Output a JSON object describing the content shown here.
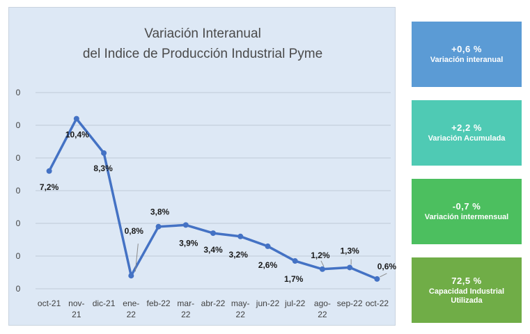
{
  "chart_data": {
    "type": "line",
    "title_lines": [
      "Variación Interanual",
      "del Indice de Producción Industrial Pyme"
    ],
    "categories": [
      [
        "oct-21"
      ],
      [
        "nov-",
        "21"
      ],
      [
        "dic-21"
      ],
      [
        "ene-",
        "22"
      ],
      [
        "feb-22"
      ],
      [
        "mar-",
        "22"
      ],
      [
        "abr-22"
      ],
      [
        "may-",
        "22"
      ],
      [
        "jun-22"
      ],
      [
        "jul-22"
      ],
      [
        "ago-",
        "22"
      ],
      [
        "sep-22"
      ],
      [
        "oct-22"
      ]
    ],
    "series": [
      {
        "name": "Variación Interanual",
        "color": "#4472c4",
        "values": [
          7.2,
          10.4,
          8.3,
          0.8,
          3.8,
          3.9,
          3.4,
          3.2,
          2.6,
          1.7,
          1.2,
          1.3,
          0.6
        ],
        "labels": [
          "7,2%",
          "10,4%",
          "8,3%",
          "0,8%",
          "3,8%",
          "3,9%",
          "3,4%",
          "3,2%",
          "2,6%",
          "1,7%",
          "1,2%",
          "1,3%",
          "0,6%"
        ]
      }
    ],
    "y_tick_labels": [
      "0",
      "0",
      "0",
      "0",
      "0",
      "0",
      "0"
    ],
    "ylim": [
      0,
      12
    ],
    "grid": true
  },
  "kpis": [
    {
      "value": "+0,6 %",
      "label": "Variación interanual",
      "color": "#5b9bd5"
    },
    {
      "value": "+2,2 %",
      "label": "Variación Acumulada",
      "color": "#4fcab4"
    },
    {
      "value": "-0,7 %",
      "label": "Variación intermensual",
      "color": "#4cbf5f"
    },
    {
      "value": "72,5 %",
      "label": "Capacidad Industrial Utilizada",
      "color": "#70ad47"
    }
  ]
}
